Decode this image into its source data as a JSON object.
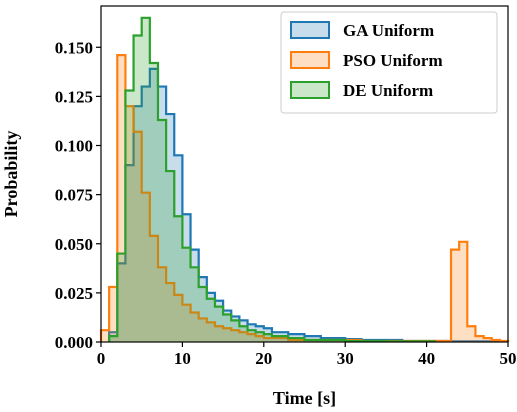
{
  "chart_data": {
    "type": "histogram",
    "xlabel": "Time [s]",
    "ylabel": "Probability",
    "xlim": [
      0,
      50
    ],
    "ylim": [
      0,
      0.171
    ],
    "xticks": [
      "0",
      "10",
      "20",
      "30",
      "40",
      "50"
    ],
    "yticks": [
      "0.000",
      "0.025",
      "0.050",
      "0.075",
      "0.100",
      "0.125",
      "0.150"
    ],
    "bin_width": 1,
    "legend_position": "top-right",
    "series": [
      {
        "name": "GA Uniform",
        "edge_color": "#1f77b4",
        "fill_color": "#1f77b4",
        "fill_opacity": 0.25,
        "bin_start": 1,
        "values": [
          0.005,
          0.04,
          0.09,
          0.12,
          0.13,
          0.139,
          0.13,
          0.116,
          0.095,
          0.065,
          0.047,
          0.033,
          0.025,
          0.021,
          0.016,
          0.013,
          0.011,
          0.009,
          0.008,
          0.007,
          0.005,
          0.005,
          0.004,
          0.004,
          0.003,
          0.003,
          0.002,
          0.002,
          0.002,
          0.0015,
          0.0015,
          0.001,
          0.001,
          0.001,
          0.001,
          0.001,
          0.0005,
          0.0005,
          0.0005,
          0.0005,
          0.0005,
          0.0005,
          0.0003,
          0.0003,
          0.0003,
          0.0003,
          0.0003,
          0.0003,
          0.0003
        ]
      },
      {
        "name": "PSO Uniform",
        "edge_color": "#ff7f0e",
        "fill_color": "#ff7f0e",
        "fill_opacity": 0.25,
        "bin_start": 0,
        "values": [
          0.006,
          0.028,
          0.146,
          0.12,
          0.107,
          0.076,
          0.054,
          0.038,
          0.03,
          0.024,
          0.019,
          0.015,
          0.012,
          0.01,
          0.008,
          0.007,
          0.006,
          0.005,
          0.004,
          0.003,
          0.002,
          0.002,
          0.002,
          0.001,
          0.001,
          0.001,
          0.001,
          0.001,
          0.001,
          0.001,
          0.001,
          0.001,
          0.0005,
          0.0005,
          0.0005,
          0.0005,
          0.0005,
          0.0005,
          0.0005,
          0.0005,
          0.0005,
          0.0005,
          0.0005,
          0.047,
          0.051,
          0.008,
          0.003,
          0.002,
          0.001,
          0.0005
        ]
      },
      {
        "name": "DE Uniform",
        "edge_color": "#2ca02c",
        "fill_color": "#2ca02c",
        "fill_opacity": 0.25,
        "bin_start": 1,
        "values": [
          0.003,
          0.045,
          0.128,
          0.156,
          0.165,
          0.142,
          0.113,
          0.087,
          0.064,
          0.048,
          0.038,
          0.028,
          0.022,
          0.018,
          0.014,
          0.011,
          0.008,
          0.006,
          0.005,
          0.004,
          0.003,
          0.003,
          0.002,
          0.002,
          0.001,
          0.001,
          0.001,
          0.001,
          0.001,
          0.0005,
          0.0005,
          0.0005,
          0.0005,
          0.0005,
          0.0003,
          0.0003,
          0.0003,
          0.0003,
          0.0003,
          0.0003
        ]
      }
    ]
  }
}
